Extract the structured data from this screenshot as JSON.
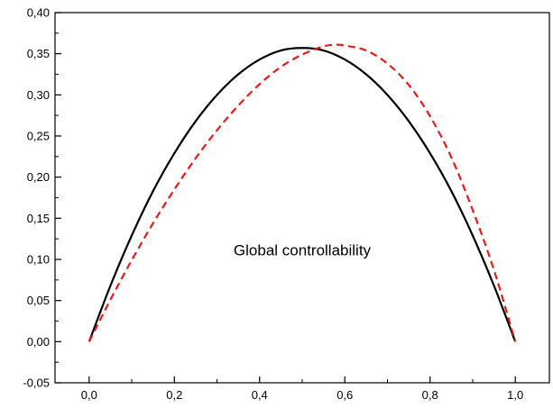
{
  "chart_data": {
    "type": "line",
    "title": "",
    "xlabel": "",
    "ylabel": "",
    "xlim": [
      -0.08,
      1.08
    ],
    "ylim": [
      -0.05,
      0.4
    ],
    "x_ticks": [
      0.0,
      0.2,
      0.4,
      0.6,
      0.8,
      1.0
    ],
    "x_tick_labels": [
      "0,0",
      "0,2",
      "0,4",
      "0,6",
      "0,8",
      "1,0"
    ],
    "y_ticks": [
      -0.05,
      0.0,
      0.05,
      0.1,
      0.15,
      0.2,
      0.25,
      0.3,
      0.35,
      0.4
    ],
    "y_tick_labels": [
      "-0,05",
      "0,00",
      "0,05",
      "0,10",
      "0,15",
      "0,20",
      "0,25",
      "0,30",
      "0,35",
      "0,40"
    ],
    "grid": false,
    "legend": "none",
    "annotations": [
      {
        "text": "Global  controllability",
        "x": 0.5,
        "y": 0.105
      }
    ],
    "series": [
      {
        "style": "solid",
        "color": "#000000",
        "x": [
          0.0,
          0.05,
          0.1,
          0.15,
          0.2,
          0.25,
          0.3,
          0.35,
          0.4,
          0.45,
          0.5,
          0.55,
          0.6,
          0.65,
          0.7,
          0.75,
          0.8,
          0.85,
          0.9,
          0.95,
          1.0
        ],
        "y": [
          0.0,
          0.068,
          0.129,
          0.183,
          0.229,
          0.268,
          0.3,
          0.325,
          0.343,
          0.354,
          0.357,
          0.354,
          0.343,
          0.325,
          0.3,
          0.268,
          0.229,
          0.183,
          0.129,
          0.068,
          0.0
        ]
      },
      {
        "style": "dashed",
        "color": "#e41a1c",
        "x": [
          0.0,
          0.05,
          0.1,
          0.15,
          0.2,
          0.25,
          0.3,
          0.35,
          0.4,
          0.45,
          0.5,
          0.55,
          0.58,
          0.6,
          0.65,
          0.7,
          0.75,
          0.8,
          0.85,
          0.9,
          0.95,
          1.0
        ],
        "y": [
          0.0,
          0.051,
          0.099,
          0.144,
          0.185,
          0.223,
          0.257,
          0.287,
          0.313,
          0.334,
          0.349,
          0.359,
          0.361,
          0.36,
          0.354,
          0.338,
          0.312,
          0.274,
          0.224,
          0.16,
          0.087,
          0.0
        ]
      }
    ]
  }
}
